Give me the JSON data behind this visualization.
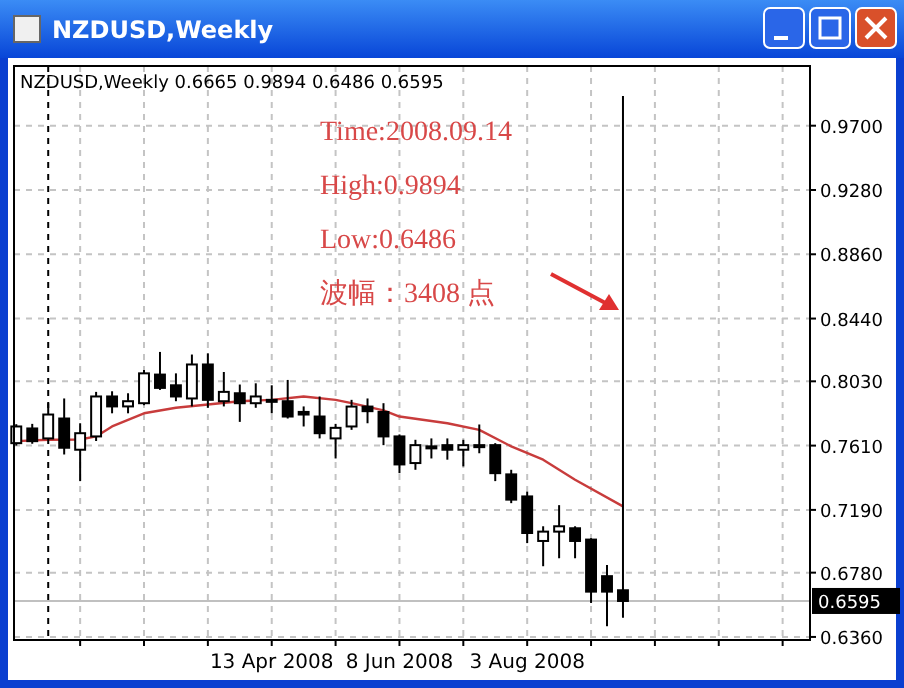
{
  "chart_data": {
    "type": "candlestick",
    "title": "NZDUSD,Weekly",
    "subtitle": "NZDUSD,Weekly  0.6665 0.9894 0.6486 0.6595",
    "annotations": [
      "Time:2008.09.14",
      "High:0.9894",
      "Low:0.6486",
      "波幅：3408 点"
    ],
    "x": [
      "2007-12-23",
      "2007-12-30",
      "2008-01-06",
      "2008-01-13",
      "2008-01-20",
      "2008-01-27",
      "2008-02-03",
      "2008-02-10",
      "2008-02-17",
      "2008-02-24",
      "2008-03-02",
      "2008-03-09",
      "2008-03-16",
      "2008-03-23",
      "2008-03-30",
      "2008-04-06",
      "2008-04-13",
      "2008-04-20",
      "2008-04-27",
      "2008-05-04",
      "2008-05-11",
      "2008-05-18",
      "2008-05-25",
      "2008-06-01",
      "2008-06-08",
      "2008-06-15",
      "2008-06-22",
      "2008-06-29",
      "2008-07-06",
      "2008-07-13",
      "2008-07-20",
      "2008-07-27",
      "2008-08-03",
      "2008-08-10",
      "2008-08-17",
      "2008-08-24",
      "2008-08-31",
      "2008-09-07",
      "2008-09-14"
    ],
    "ohlc": [
      [
        0.7626,
        0.775,
        0.761,
        0.7735
      ],
      [
        0.7722,
        0.7752,
        0.7622,
        0.7639
      ],
      [
        0.7657,
        0.7887,
        0.7639,
        0.7813
      ],
      [
        0.7787,
        0.7918,
        0.7552,
        0.7596
      ],
      [
        0.7583,
        0.7756,
        0.7378,
        0.7691
      ],
      [
        0.767,
        0.7961,
        0.764,
        0.7931
      ],
      [
        0.7931,
        0.7965,
        0.7821,
        0.7866
      ],
      [
        0.7866,
        0.7952,
        0.7821,
        0.79
      ],
      [
        0.7887,
        0.8104,
        0.7874,
        0.8082
      ],
      [
        0.8074,
        0.8222,
        0.7974,
        0.7987
      ],
      [
        0.8004,
        0.8082,
        0.79,
        0.7931
      ],
      [
        0.7918,
        0.8205,
        0.7866,
        0.814
      ],
      [
        0.814,
        0.8213,
        0.7857,
        0.7909
      ],
      [
        0.79,
        0.8091,
        0.7866,
        0.7961
      ],
      [
        0.7952,
        0.8009,
        0.7765,
        0.7887
      ],
      [
        0.7887,
        0.8017,
        0.7857,
        0.7931
      ],
      [
        0.7909,
        0.8004,
        0.7821,
        0.79
      ],
      [
        0.79,
        0.8039,
        0.7787,
        0.78
      ],
      [
        0.783,
        0.7866,
        0.7735,
        0.7813
      ],
      [
        0.78,
        0.7931,
        0.7657,
        0.7691
      ],
      [
        0.7657,
        0.7752,
        0.7526,
        0.7726
      ],
      [
        0.7735,
        0.7909,
        0.7713,
        0.7865
      ],
      [
        0.7865,
        0.7918,
        0.7756,
        0.7835
      ],
      [
        0.783,
        0.7887,
        0.7613,
        0.767
      ],
      [
        0.767,
        0.7683,
        0.743,
        0.7487
      ],
      [
        0.7496,
        0.7648,
        0.7452,
        0.7613
      ],
      [
        0.76,
        0.7657,
        0.7526,
        0.7605
      ],
      [
        0.7613,
        0.7657,
        0.7518,
        0.7583
      ],
      [
        0.7583,
        0.7648,
        0.7474,
        0.7613
      ],
      [
        0.7605,
        0.7748,
        0.756,
        0.7613
      ],
      [
        0.7613,
        0.7626,
        0.7378,
        0.743
      ],
      [
        0.7422,
        0.7452,
        0.7234,
        0.7257
      ],
      [
        0.7278,
        0.7309,
        0.6973,
        0.7039
      ],
      [
        0.6987,
        0.7083,
        0.6822,
        0.7048
      ],
      [
        0.7048,
        0.7221,
        0.6874,
        0.7083
      ],
      [
        0.707,
        0.7083,
        0.6874,
        0.6987
      ],
      [
        0.6996,
        0.7005,
        0.6582,
        0.6656
      ],
      [
        0.6757,
        0.683,
        0.643,
        0.6656
      ],
      [
        0.6665,
        0.9894,
        0.6486,
        0.6595
      ]
    ],
    "series": [
      {
        "type": "line",
        "color": "#c83c3c",
        "x": [
          "2007-12-23",
          "2008-01-06",
          "2008-01-20",
          "2008-01-27",
          "2008-02-03",
          "2008-02-17",
          "2008-03-02",
          "2008-03-16",
          "2008-03-30",
          "2008-04-13",
          "2008-04-27",
          "2008-05-11",
          "2008-05-18",
          "2008-06-01",
          "2008-06-08",
          "2008-06-29",
          "2008-07-13",
          "2008-07-27",
          "2008-08-10",
          "2008-08-24",
          "2008-09-14"
        ],
        "values": [
          0.7639,
          0.7648,
          0.765,
          0.767,
          0.7735,
          0.7821,
          0.7857,
          0.7879,
          0.79,
          0.7909,
          0.7931,
          0.7909,
          0.7887,
          0.784,
          0.78,
          0.7756,
          0.7713,
          0.7605,
          0.7518,
          0.7387,
          0.7213
        ]
      }
    ],
    "xlim": [
      "2007-12-22",
      "2008-12-05"
    ],
    "xticks": [
      {
        "value": "2008-01-20",
        "label": null
      },
      {
        "value": "2008-02-17",
        "label": null
      },
      {
        "value": "2008-03-16",
        "label": null
      },
      {
        "value": "2008-04-13",
        "label": "13 Apr 2008"
      },
      {
        "value": "2008-05-11",
        "label": null
      },
      {
        "value": "2008-06-08",
        "label": "8 Jun 2008"
      },
      {
        "value": "2008-07-06",
        "label": null
      },
      {
        "value": "2008-08-03",
        "label": "3 Aug 2008"
      },
      {
        "value": "2008-08-31",
        "label": null
      },
      {
        "value": "2008-09-28",
        "label": null
      },
      {
        "value": "2008-10-26",
        "label": null
      },
      {
        "value": "2008-11-23",
        "label": null
      }
    ],
    "ylim": [
      0.634,
      1.009
    ],
    "yticks": [
      {
        "value": 0.636,
        "label": "0.6360"
      },
      {
        "value": 0.678,
        "label": "0.6780"
      },
      {
        "value": 0.719,
        "label": "0.7190"
      },
      {
        "value": 0.761,
        "label": "0.7610"
      },
      {
        "value": 0.803,
        "label": "0.8030"
      },
      {
        "value": 0.844,
        "label": "0.8440"
      },
      {
        "value": 0.886,
        "label": "0.8860"
      },
      {
        "value": 0.928,
        "label": "0.9280"
      },
      {
        "value": 0.97,
        "label": "0.9700"
      }
    ],
    "ref_lines": [
      {
        "axis": "x",
        "value": "2008-01-06",
        "color": "#000000",
        "line_style": "dashed"
      },
      {
        "axis": "y",
        "value": 0.6595,
        "label": "0.6595",
        "color": "#c0c0c0"
      }
    ],
    "grid": true
  }
}
